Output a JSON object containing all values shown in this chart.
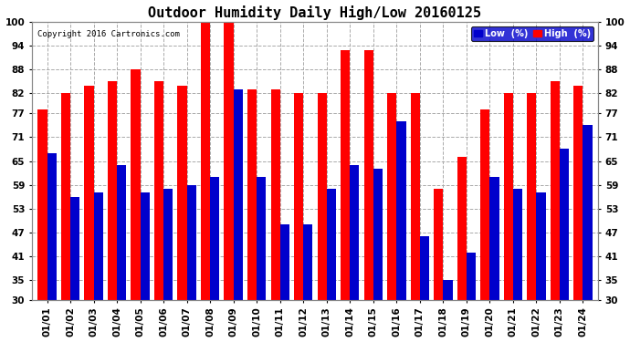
{
  "title": "Outdoor Humidity Daily High/Low 20160125",
  "copyright": "Copyright 2016 Cartronics.com",
  "dates": [
    "01/01",
    "01/02",
    "01/03",
    "01/04",
    "01/05",
    "01/06",
    "01/07",
    "01/08",
    "01/09",
    "01/10",
    "01/11",
    "01/12",
    "01/13",
    "01/14",
    "01/15",
    "01/16",
    "01/17",
    "01/18",
    "01/19",
    "01/20",
    "01/21",
    "01/22",
    "01/23",
    "01/24"
  ],
  "high": [
    78,
    82,
    84,
    85,
    88,
    85,
    84,
    100,
    100,
    83,
    83,
    82,
    82,
    93,
    93,
    82,
    82,
    58,
    66,
    78,
    82,
    82,
    85,
    84
  ],
  "low": [
    67,
    56,
    57,
    64,
    57,
    58,
    59,
    61,
    83,
    61,
    49,
    49,
    58,
    64,
    63,
    75,
    46,
    35,
    42,
    61,
    58,
    57,
    68,
    74
  ],
  "ylim": [
    30,
    100
  ],
  "yticks": [
    30,
    35,
    41,
    47,
    53,
    59,
    65,
    71,
    77,
    82,
    88,
    94,
    100
  ],
  "bar_width": 0.4,
  "high_color": "#ff0000",
  "low_color": "#0000cc",
  "bg_color": "#ffffff",
  "grid_color": "#aaaaaa",
  "title_fontsize": 11,
  "tick_fontsize": 7.5,
  "legend_low_label": "Low  (%)",
  "legend_high_label": "High  (%)"
}
